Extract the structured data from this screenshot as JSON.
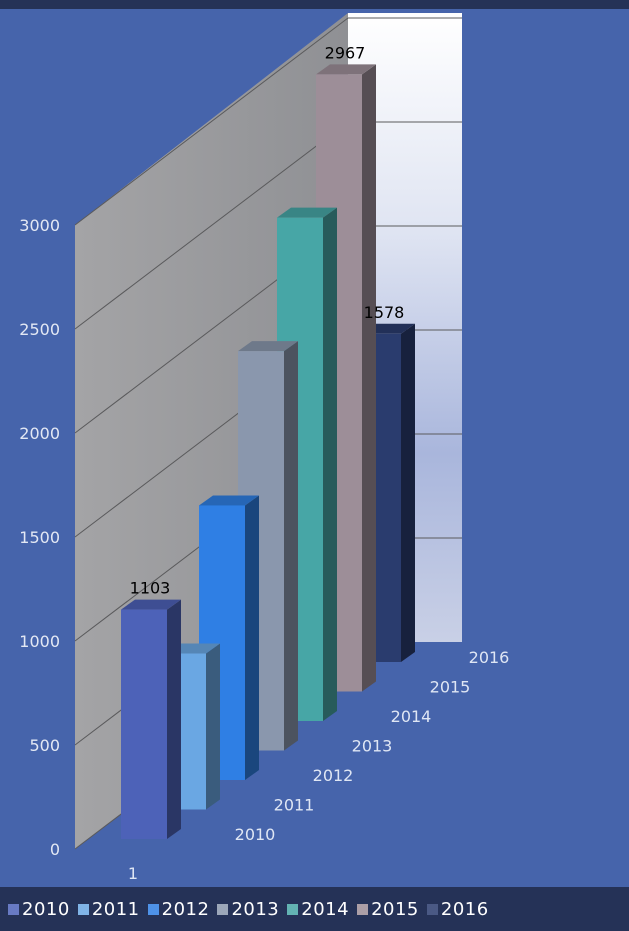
{
  "chart_data": {
    "type": "bar",
    "categories": [
      "1"
    ],
    "series": [
      {
        "name": "2010",
        "value": 1103,
        "color": "#4d62b8"
      },
      {
        "name": "2011",
        "value": 750,
        "color": "#6aa7e3"
      },
      {
        "name": "2012",
        "value": 1320,
        "color": "#2f7fe4"
      },
      {
        "name": "2013",
        "value": 1920,
        "color": "#8a97ad"
      },
      {
        "name": "2014",
        "value": 2420,
        "color": "#47a6a6"
      },
      {
        "name": "2015",
        "value": 2967,
        "color": "#9d8e98"
      },
      {
        "name": "2016",
        "value": 1578,
        "color": "#2a3c6e"
      }
    ],
    "data_labels": [
      {
        "series": "2010",
        "text": "1103"
      },
      {
        "series": "2015",
        "text": "2967"
      },
      {
        "series": "2016",
        "text": "1578"
      }
    ],
    "ylim": [
      0,
      3000
    ],
    "y_ticks": [
      "0",
      "500",
      "1000",
      "1500",
      "2000",
      "2500",
      "3000"
    ],
    "depth_labels": [
      "2010",
      "2011",
      "2012",
      "2013",
      "2014",
      "2015",
      "2016"
    ],
    "grid": true,
    "legend": "bottom",
    "title": "",
    "xlabel": "",
    "ylabel": ""
  }
}
